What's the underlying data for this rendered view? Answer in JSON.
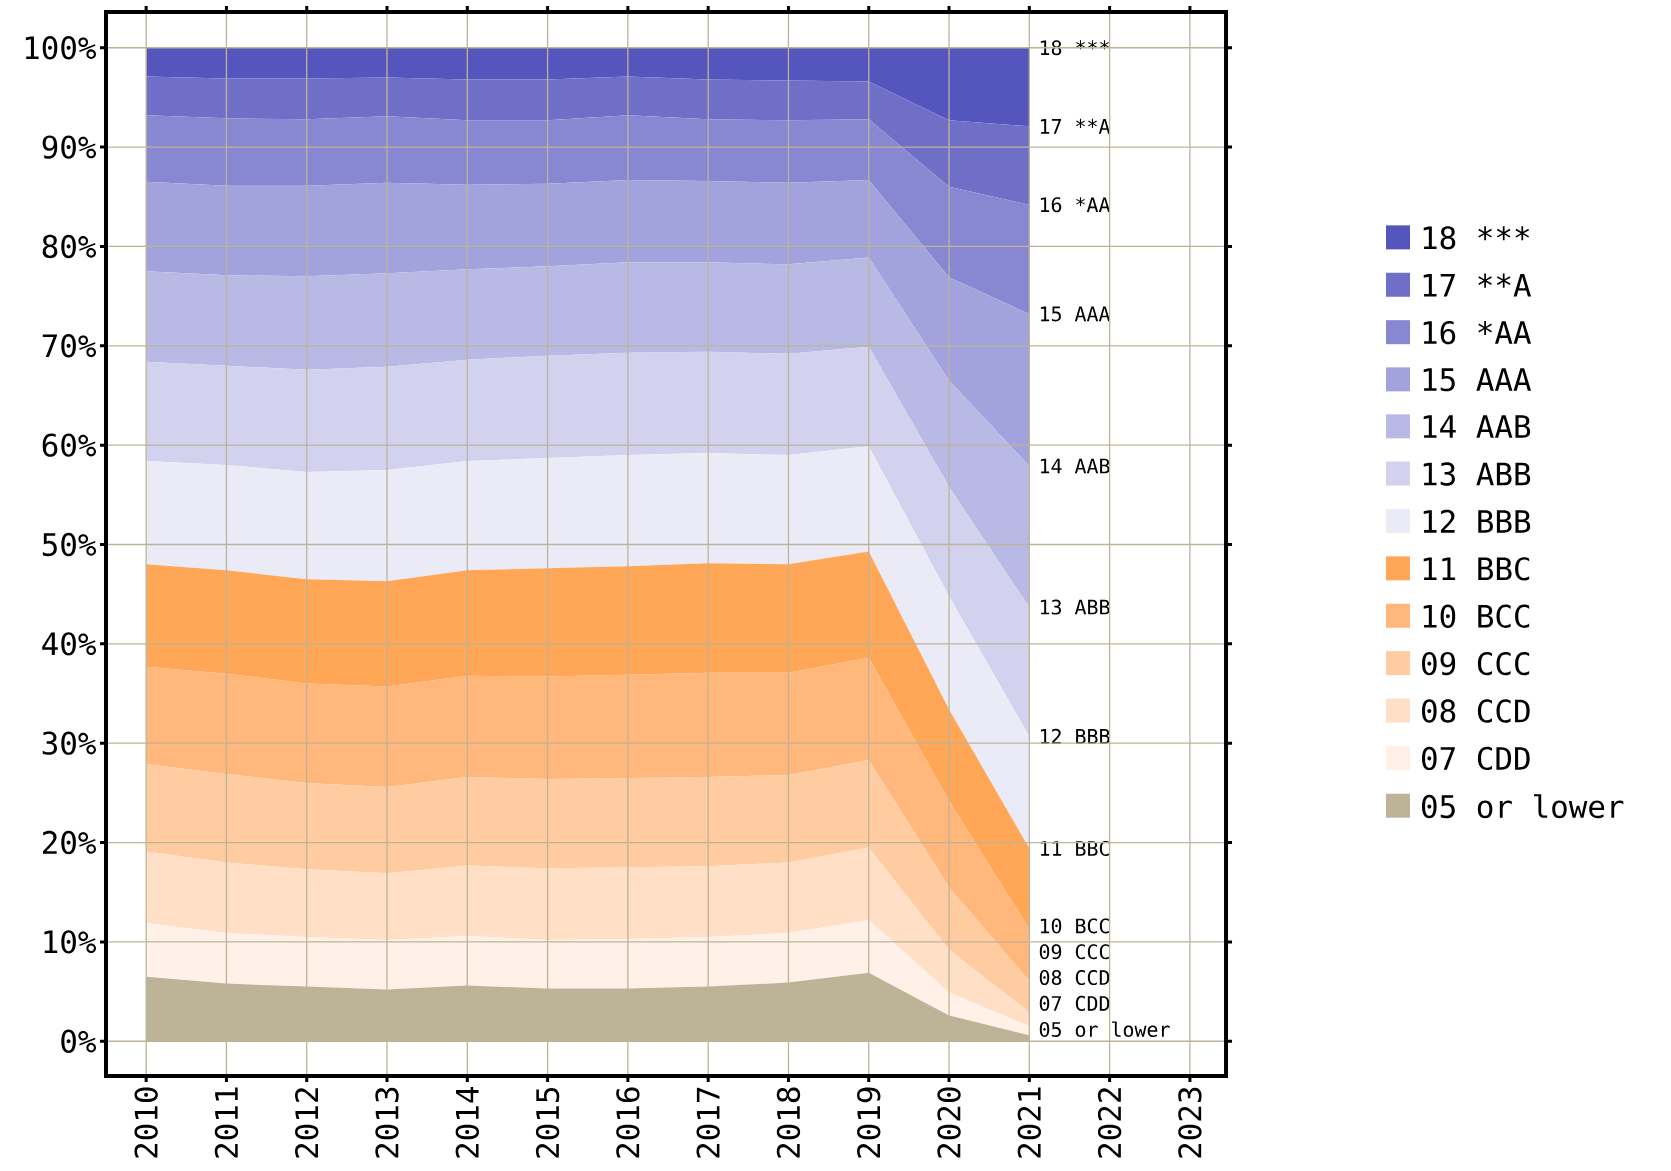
{
  "chart_data": {
    "type": "area",
    "stacked": true,
    "grid": true,
    "legend": "right",
    "x": [
      2010,
      2011,
      2012,
      2013,
      2014,
      2015,
      2016,
      2017,
      2018,
      2019,
      2020,
      2021
    ],
    "xlim": [
      2009.5,
      2023.45
    ],
    "xticks": [
      2010,
      2011,
      2012,
      2013,
      2014,
      2015,
      2016,
      2017,
      2018,
      2019,
      2020,
      2021,
      2022,
      2023
    ],
    "ylim": [
      -3.5,
      103.6
    ],
    "yticks": [
      {
        "value": 0,
        "label": "0%"
      },
      {
        "value": 10,
        "label": "10%"
      },
      {
        "value": 20,
        "label": "20%"
      },
      {
        "value": 30,
        "label": "30%"
      },
      {
        "value": 40,
        "label": "40%"
      },
      {
        "value": 50,
        "label": "50%"
      },
      {
        "value": 60,
        "label": "60%"
      },
      {
        "value": 70,
        "label": "70%"
      },
      {
        "value": 80,
        "label": "80%"
      },
      {
        "value": 90,
        "label": "90%"
      },
      {
        "value": 100,
        "label": "100%"
      }
    ],
    "series": [
      {
        "name": "05 or lower",
        "color": "#bdb498",
        "values": [
          6.5,
          5.8,
          5.5,
          5.2,
          5.6,
          5.3,
          5.3,
          5.5,
          5.9,
          6.9,
          2.6,
          0.6
        ]
      },
      {
        "name": "07 CDD",
        "color": "#fff1e8",
        "values": [
          5.4,
          5.1,
          5.0,
          5.0,
          5.0,
          4.9,
          5.0,
          5.0,
          5.0,
          5.3,
          2.3,
          0.9
        ]
      },
      {
        "name": "08 CCD",
        "color": "#ffdfc5",
        "values": [
          7.2,
          7.1,
          6.8,
          6.7,
          7.1,
          7.2,
          7.2,
          7.1,
          7.1,
          7.3,
          4.3,
          1.4
        ]
      },
      {
        "name": "09 CCC",
        "color": "#ffcba0",
        "values": [
          8.8,
          8.9,
          8.7,
          8.7,
          8.9,
          9.0,
          9.0,
          9.0,
          8.8,
          8.8,
          6.3,
          3.2
        ]
      },
      {
        "name": "10 BCC",
        "color": "#ffb77c",
        "values": [
          9.8,
          10.1,
          10.0,
          10.1,
          10.2,
          10.3,
          10.4,
          10.5,
          10.3,
          10.3,
          8.7,
          5.2
        ]
      },
      {
        "name": "11 BBC",
        "color": "#ffa657",
        "values": [
          10.3,
          10.4,
          10.5,
          10.6,
          10.6,
          10.9,
          10.9,
          11.0,
          10.9,
          10.7,
          9.2,
          8.1
        ]
      },
      {
        "name": "12 BBB",
        "color": "#ebebf7",
        "values": [
          10.4,
          10.6,
          10.8,
          11.2,
          11.0,
          11.1,
          11.2,
          11.1,
          11.0,
          10.6,
          11.4,
          11.3
        ]
      },
      {
        "name": "13 ABB",
        "color": "#d2d2ee",
        "values": [
          10.0,
          10.0,
          10.3,
          10.4,
          10.2,
          10.3,
          10.3,
          10.2,
          10.2,
          10.0,
          11.0,
          13.0
        ]
      },
      {
        "name": "14 AAB",
        "color": "#b9b9e6",
        "values": [
          9.1,
          9.1,
          9.4,
          9.4,
          9.1,
          9.0,
          9.1,
          9.0,
          9.0,
          9.0,
          10.7,
          14.2
        ]
      },
      {
        "name": "15 AAA",
        "color": "#a2a2dc",
        "values": [
          9.0,
          9.0,
          9.1,
          9.1,
          8.5,
          8.3,
          8.3,
          8.2,
          8.2,
          7.8,
          10.4,
          15.3
        ]
      },
      {
        "name": "16 *AA",
        "color": "#8888d2",
        "values": [
          6.7,
          6.8,
          6.7,
          6.7,
          6.5,
          6.4,
          6.5,
          6.2,
          6.3,
          6.1,
          9.1,
          11.0
        ]
      },
      {
        "name": "17 **A",
        "color": "#6f6fc8",
        "values": [
          3.9,
          4.0,
          4.1,
          3.9,
          4.1,
          4.1,
          3.9,
          4.0,
          4.0,
          3.8,
          6.7,
          7.9
        ]
      },
      {
        "name": "18 ***",
        "color": "#5555be",
        "values": [
          2.9,
          3.1,
          3.1,
          3.0,
          3.2,
          3.2,
          2.9,
          3.2,
          3.3,
          3.4,
          7.3,
          7.9
        ]
      }
    ]
  }
}
